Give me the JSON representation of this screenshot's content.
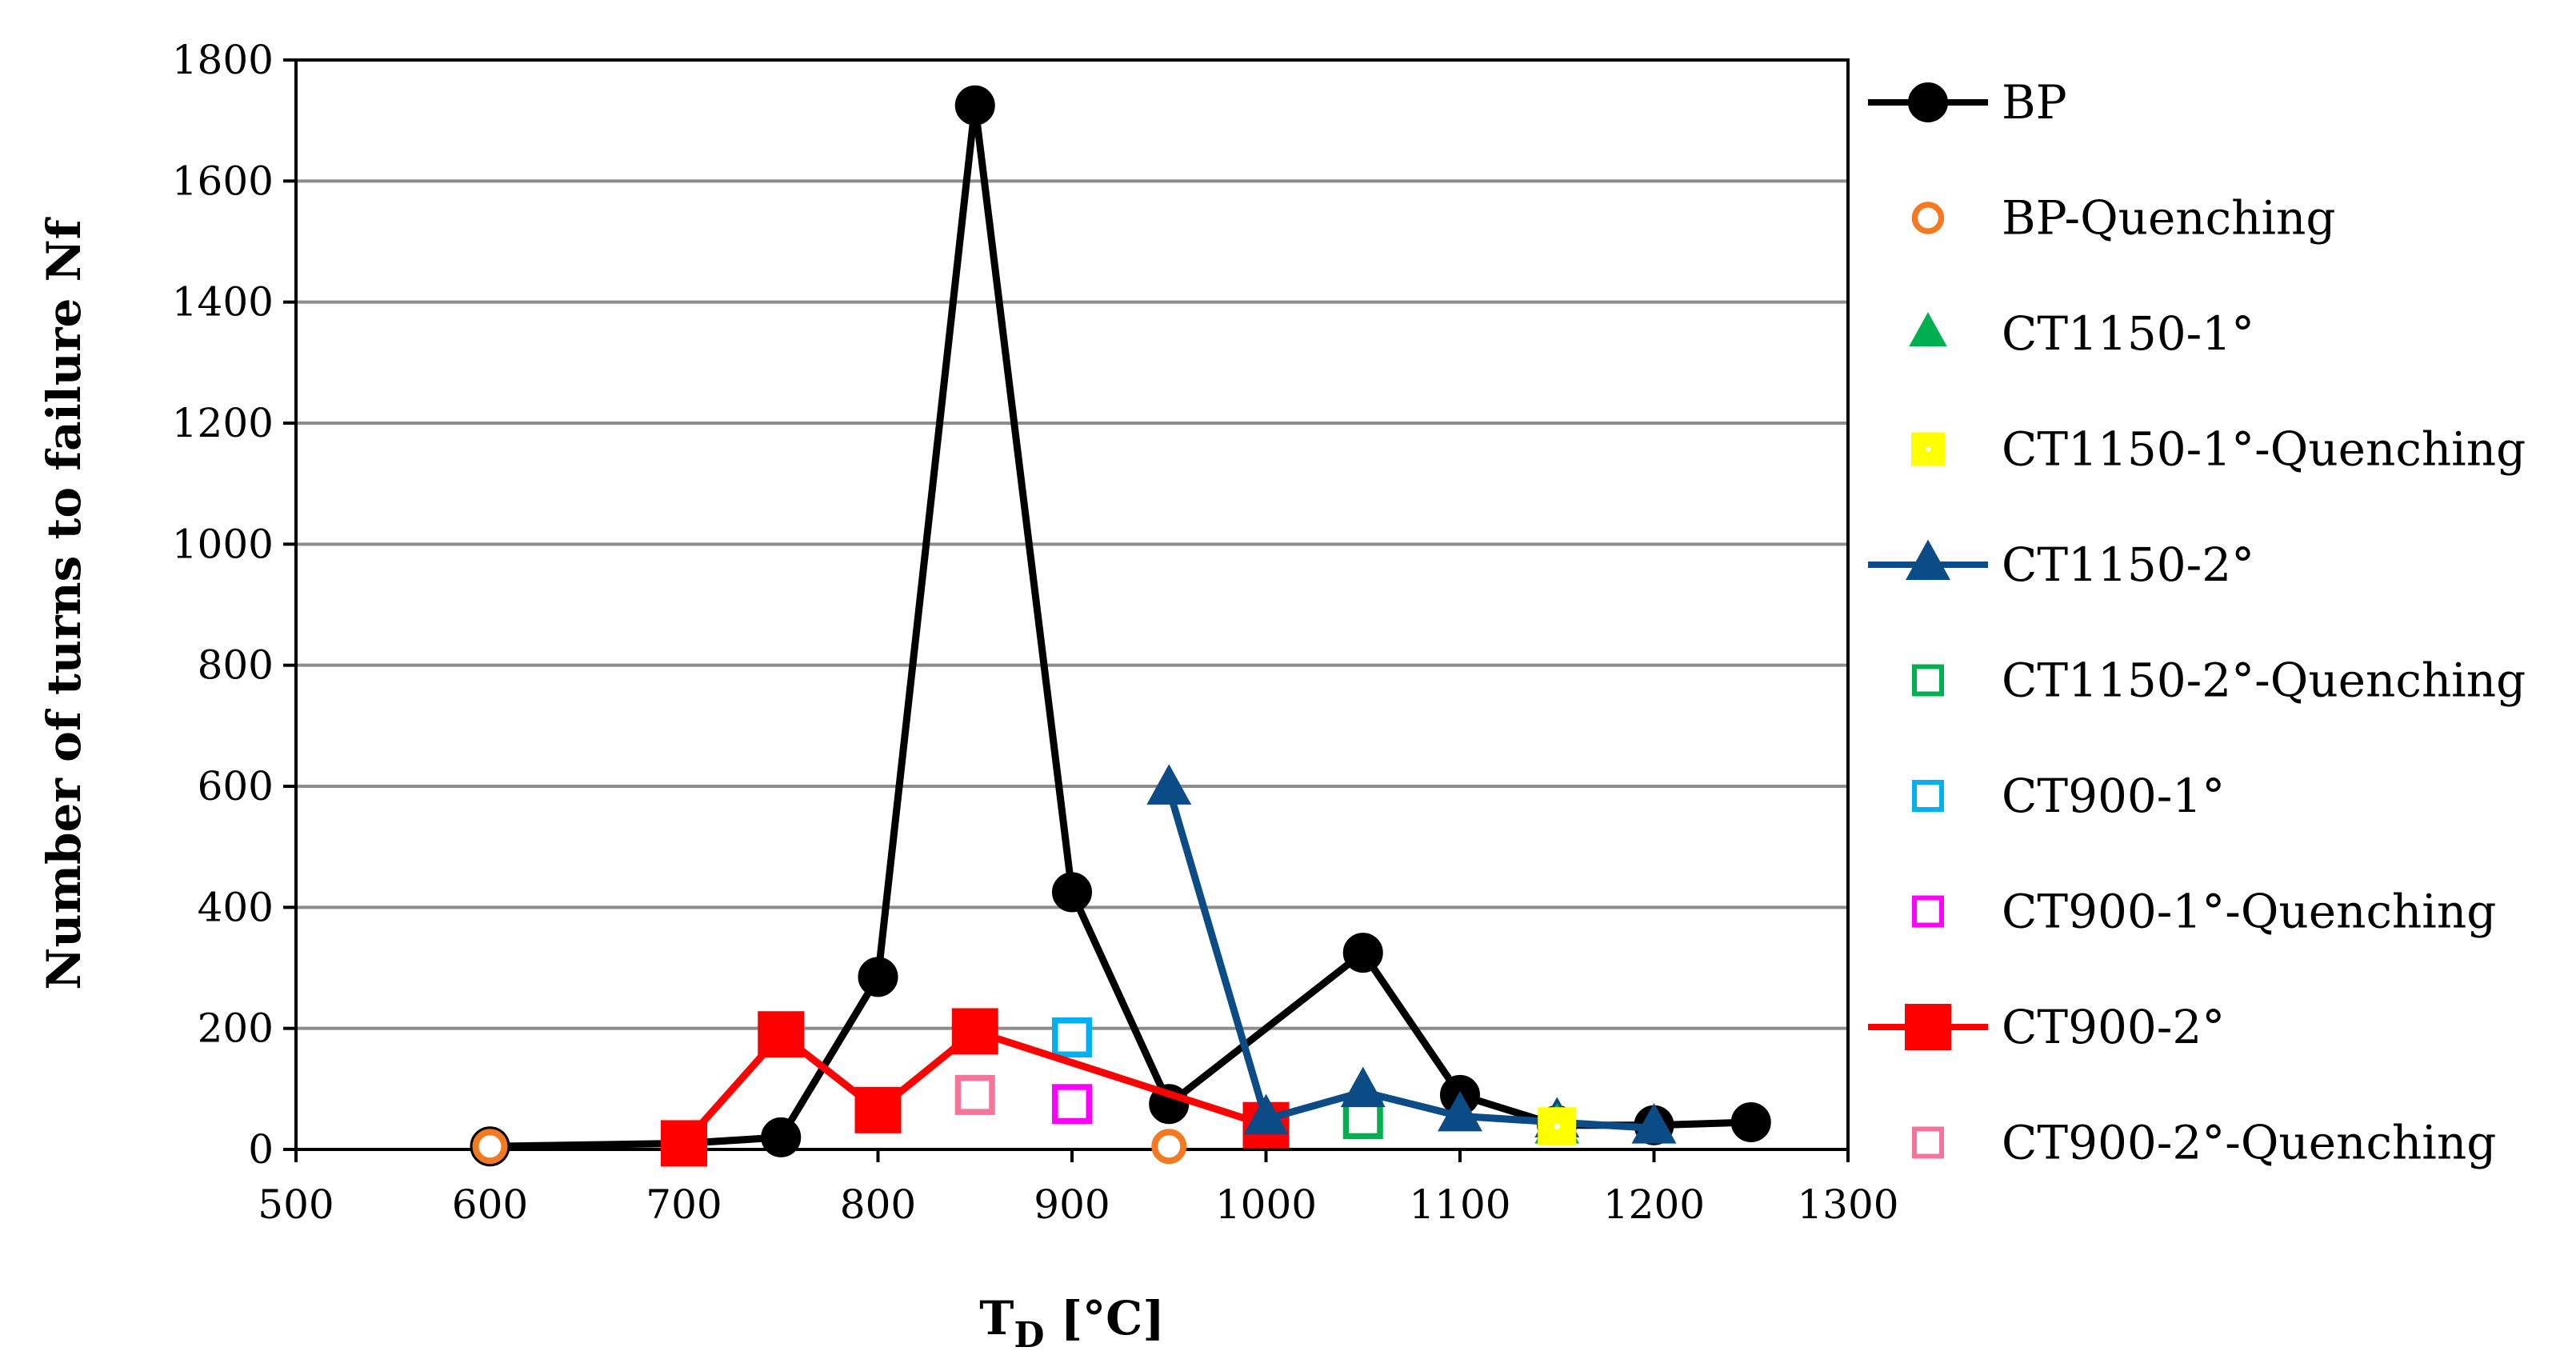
{
  "chart_data": {
    "type": "scatter",
    "title": "",
    "xlabel_main": "T",
    "xlabel_sub": "D",
    "xlabel_unit": " [°C]",
    "ylabel": "Number of turns to failure Nf",
    "xlim": [
      500,
      1300
    ],
    "ylim": [
      0,
      1800
    ],
    "xticks": [
      500,
      600,
      700,
      800,
      900,
      1000,
      1100,
      1200,
      1300
    ],
    "yticks": [
      0,
      200,
      400,
      600,
      800,
      1000,
      1200,
      1400,
      1600,
      1800
    ],
    "grid": "horizontal",
    "legend_position": "right",
    "series": [
      {
        "name": "BP",
        "color": "#000000",
        "marker": "circle-filled",
        "line": true,
        "x": [
          600,
          700,
          750,
          800,
          850,
          900,
          950,
          1050,
          1100,
          1150,
          1200,
          1250
        ],
        "y": [
          5,
          10,
          20,
          285,
          1725,
          425,
          75,
          325,
          90,
          40,
          40,
          45
        ]
      },
      {
        "name": "BP-Quenching",
        "color": "#F47920",
        "marker": "circle-open",
        "line": false,
        "x": [
          600,
          950
        ],
        "y": [
          5,
          5
        ]
      },
      {
        "name": "CT1150-1°",
        "color": "#00B050",
        "marker": "triangle-filled",
        "line": false,
        "x": [
          1150
        ],
        "y": [
          35
        ]
      },
      {
        "name": "CT1150-1°-Quenching",
        "color": "#FFFF00",
        "marker": "square-filled-dot",
        "line": false,
        "x": [
          1150
        ],
        "y": [
          38
        ]
      },
      {
        "name": "CT1150-2°",
        "color": "#0B4C86",
        "marker": "triangle-filled",
        "line": true,
        "x": [
          950,
          1000,
          1050,
          1100,
          1150,
          1200
        ],
        "y": [
          595,
          50,
          95,
          55,
          45,
          35
        ]
      },
      {
        "name": "CT1150-2°-Quenching",
        "color": "#00B050",
        "marker": "square-open",
        "line": false,
        "x": [
          1050
        ],
        "y": [
          50
        ]
      },
      {
        "name": "CT900-1°",
        "color": "#00B0F0",
        "marker": "square-open",
        "line": false,
        "x": [
          900
        ],
        "y": [
          185
        ]
      },
      {
        "name": "CT900-1°-Quenching",
        "color": "#FF00FF",
        "marker": "square-open",
        "line": false,
        "x": [
          900
        ],
        "y": [
          75
        ]
      },
      {
        "name": "CT900-2°",
        "color": "#FF0000",
        "marker": "square-filled",
        "line": true,
        "x": [
          700,
          750,
          800,
          850,
          1000
        ],
        "y": [
          10,
          190,
          65,
          195,
          40
        ]
      },
      {
        "name": "CT900-2°-Quenching",
        "color": "#F4749A",
        "marker": "square-open",
        "line": false,
        "x": [
          850
        ],
        "y": [
          90
        ]
      }
    ]
  }
}
